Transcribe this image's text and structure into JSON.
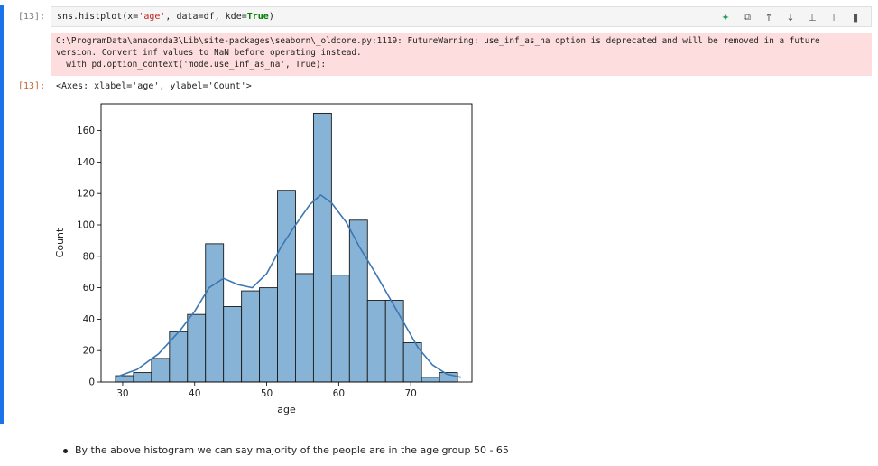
{
  "cell": {
    "input_prompt": "[13]:",
    "output_prompt": "[13]:",
    "code": {
      "call": "sns.histplot",
      "open": "(x=",
      "x_arg": "'age'",
      "mid": ", data=df, kde=",
      "kde_val": "True",
      "close": ")"
    },
    "toolbar": [
      {
        "icon": "sparkle-icon",
        "glyph": "✦"
      },
      {
        "icon": "copy-icon",
        "glyph": "⧉"
      },
      {
        "icon": "arrow-up-icon",
        "glyph": "↑"
      },
      {
        "icon": "arrow-down-icon",
        "glyph": "↓"
      },
      {
        "icon": "insert-above-icon",
        "glyph": "⊥"
      },
      {
        "icon": "insert-below-icon",
        "glyph": "⊤"
      },
      {
        "icon": "delete-icon",
        "glyph": "▮"
      }
    ],
    "warning_lines": [
      "C:\\ProgramData\\anaconda3\\Lib\\site-packages\\seaborn\\_oldcore.py:1119: FutureWarning: use_inf_as_na option is deprecated and will be removed in a future",
      "version. Convert inf values to NaN before operating instead.",
      "  with pd.option_context('mode.use_inf_as_na', True):"
    ],
    "output_repr": "<Axes: xlabel='age', ylabel='Count'>"
  },
  "chart_data": {
    "type": "bar",
    "xlabel": "age",
    "ylabel": "Count",
    "xlim": [
      27,
      78.5
    ],
    "ylim": [
      0,
      177
    ],
    "xticks": [
      30,
      40,
      50,
      60,
      70
    ],
    "yticks": [
      0,
      20,
      40,
      60,
      80,
      100,
      120,
      140,
      160
    ],
    "bins": [
      {
        "x0": 29.0,
        "x1": 31.5,
        "count": 4
      },
      {
        "x0": 31.5,
        "x1": 34.0,
        "count": 6
      },
      {
        "x0": 34.0,
        "x1": 36.5,
        "count": 15
      },
      {
        "x0": 36.5,
        "x1": 39.0,
        "count": 32
      },
      {
        "x0": 39.0,
        "x1": 41.5,
        "count": 43
      },
      {
        "x0": 41.5,
        "x1": 44.0,
        "count": 88
      },
      {
        "x0": 44.0,
        "x1": 46.5,
        "count": 48
      },
      {
        "x0": 46.5,
        "x1": 49.0,
        "count": 58
      },
      {
        "x0": 49.0,
        "x1": 51.5,
        "count": 60
      },
      {
        "x0": 51.5,
        "x1": 54.0,
        "count": 122
      },
      {
        "x0": 54.0,
        "x1": 56.5,
        "count": 69
      },
      {
        "x0": 56.5,
        "x1": 59.0,
        "count": 171
      },
      {
        "x0": 59.0,
        "x1": 61.5,
        "count": 68
      },
      {
        "x0": 61.5,
        "x1": 64.0,
        "count": 103
      },
      {
        "x0": 64.0,
        "x1": 66.5,
        "count": 52
      },
      {
        "x0": 66.5,
        "x1": 69.0,
        "count": 52
      },
      {
        "x0": 69.0,
        "x1": 71.5,
        "count": 25
      },
      {
        "x0": 71.5,
        "x1": 74.0,
        "count": 3
      },
      {
        "x0": 74.0,
        "x1": 76.5,
        "count": 6
      }
    ],
    "kde": {
      "x": [
        29,
        32,
        35,
        38,
        40,
        42,
        44,
        46,
        48,
        50,
        52,
        54,
        56,
        57.5,
        59,
        61,
        63,
        65,
        67,
        69,
        71,
        73,
        75,
        77
      ],
      "y": [
        3,
        8,
        18,
        33,
        45,
        60,
        66,
        62,
        60,
        69,
        86,
        100,
        113,
        119,
        114,
        102,
        85,
        70,
        54,
        38,
        22,
        11,
        5,
        3
      ]
    },
    "bar_fill": "#87b4d6",
    "bar_edge": "#1a1a1a",
    "kde_color": "#3b78b3"
  },
  "markdown": {
    "bullet": "By the above histogram we can say majority of the people are in the age group 50 - 65"
  }
}
